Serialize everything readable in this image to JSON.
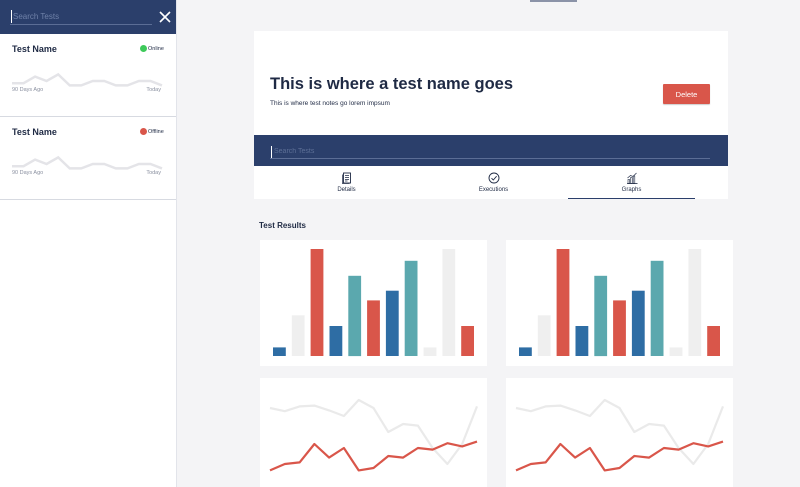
{
  "sidebar": {
    "search_placeholder": "Search Tests",
    "tests": [
      {
        "name": "Test Name",
        "status": "Online",
        "status_color": "#3ec95a",
        "start_label": "90 Days Ago",
        "end_label": "Today",
        "trend": [
          4,
          4,
          7,
          5,
          8,
          3,
          3,
          5,
          5,
          3,
          3,
          5,
          5,
          3
        ]
      },
      {
        "name": "Test Name",
        "status": "Offline",
        "status_color": "#d9564a",
        "start_label": "90 Days Ago",
        "end_label": "Today",
        "trend": [
          4,
          4,
          7,
          5,
          8,
          3,
          3,
          5,
          5,
          3,
          3,
          5,
          5,
          3
        ]
      }
    ]
  },
  "header": {
    "title": "This is where a test name goes",
    "notes": "This is where test notes go lorem impsum",
    "delete_label": "Delete",
    "search_placeholder": "Search Tests"
  },
  "tabs": [
    {
      "label": "Details",
      "icon": "document-icon",
      "active": false
    },
    {
      "label": "Executions",
      "icon": "check-circle-icon",
      "active": false
    },
    {
      "label": "Graphs",
      "icon": "bar-chart-icon",
      "active": true
    }
  ],
  "results": {
    "title": "Test Results"
  },
  "colors": {
    "navy": "#2b3f6b",
    "red": "#d9564a",
    "blue": "#2e6da4",
    "teal": "#5ba8ae",
    "grey": "#efefef"
  },
  "chart_data": [
    {
      "type": "bar",
      "ylim": [
        0,
        100
      ],
      "values": [
        8,
        38,
        100,
        28,
        75,
        52,
        61,
        89,
        8,
        100,
        28
      ],
      "bar_colors": [
        "#2e6da4",
        "#efefef",
        "#d9564a",
        "#2e6da4",
        "#5ba8ae",
        "#d9564a",
        "#2e6da4",
        "#5ba8ae",
        "#efefef",
        "#efefef",
        "#d9564a"
      ]
    },
    {
      "type": "bar",
      "ylim": [
        0,
        100
      ],
      "values": [
        8,
        38,
        100,
        28,
        75,
        52,
        61,
        89,
        8,
        100,
        28
      ],
      "bar_colors": [
        "#2e6da4",
        "#efefef",
        "#d9564a",
        "#2e6da4",
        "#5ba8ae",
        "#d9564a",
        "#2e6da4",
        "#5ba8ae",
        "#efefef",
        "#efefef",
        "#d9564a"
      ]
    },
    {
      "type": "line",
      "ylim": [
        0,
        100
      ],
      "series": [
        {
          "color": "#eaeaea",
          "values": [
            90,
            86,
            92,
            93,
            87,
            80,
            100,
            90,
            60,
            70,
            68,
            40,
            20,
            45,
            92
          ]
        },
        {
          "color": "#d9564a",
          "values": [
            12,
            20,
            22,
            45,
            28,
            40,
            12,
            15,
            30,
            28,
            40,
            38,
            46,
            42,
            48
          ]
        }
      ]
    },
    {
      "type": "line",
      "ylim": [
        0,
        100
      ],
      "series": [
        {
          "color": "#eaeaea",
          "values": [
            90,
            86,
            92,
            93,
            87,
            80,
            100,
            90,
            60,
            70,
            68,
            40,
            20,
            45,
            92
          ]
        },
        {
          "color": "#d9564a",
          "values": [
            12,
            20,
            22,
            45,
            28,
            40,
            12,
            15,
            30,
            28,
            40,
            38,
            46,
            42,
            48
          ]
        }
      ]
    }
  ]
}
